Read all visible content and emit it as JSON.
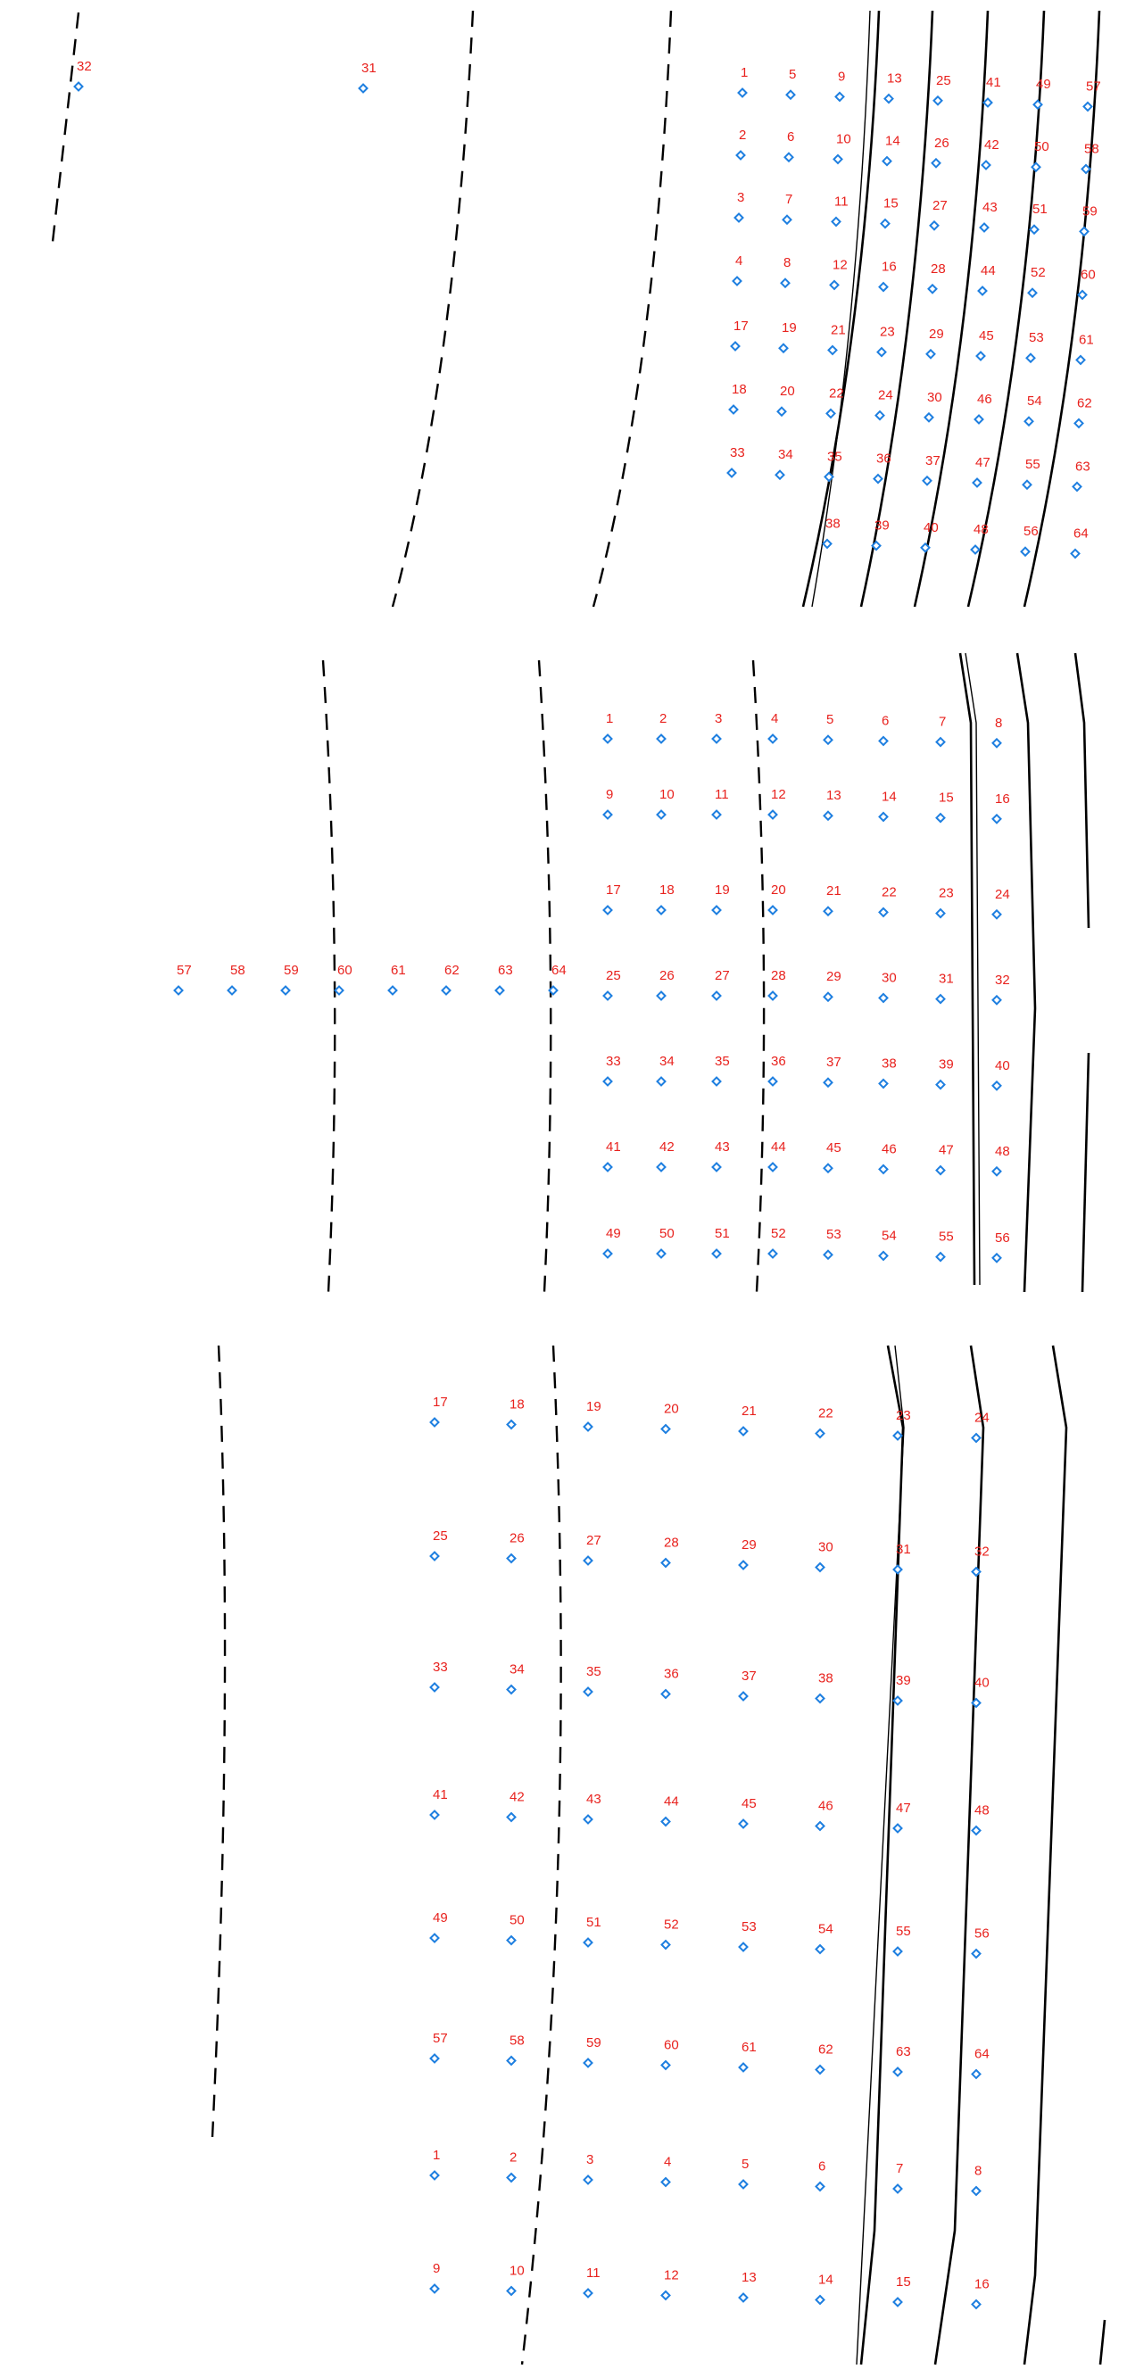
{
  "panels": [
    {
      "id": "panel-top",
      "points": [
        {
          "label": "32"
        },
        {
          "label": "31"
        },
        {
          "label": "1"
        },
        {
          "label": "5"
        },
        {
          "label": "9"
        },
        {
          "label": "13"
        },
        {
          "label": "25"
        },
        {
          "label": "41"
        },
        {
          "label": "49"
        },
        {
          "label": "57"
        },
        {
          "label": "2"
        },
        {
          "label": "6"
        },
        {
          "label": "10"
        },
        {
          "label": "14"
        },
        {
          "label": "26"
        },
        {
          "label": "42"
        },
        {
          "label": "50"
        },
        {
          "label": "58"
        },
        {
          "label": "3"
        },
        {
          "label": "7"
        },
        {
          "label": "11"
        },
        {
          "label": "15"
        },
        {
          "label": "27"
        },
        {
          "label": "43"
        },
        {
          "label": "51"
        },
        {
          "label": "59"
        },
        {
          "label": "4"
        },
        {
          "label": "8"
        },
        {
          "label": "12"
        },
        {
          "label": "16"
        },
        {
          "label": "28"
        },
        {
          "label": "44"
        },
        {
          "label": "52"
        },
        {
          "label": "60"
        },
        {
          "label": "17"
        },
        {
          "label": "19"
        },
        {
          "label": "21"
        },
        {
          "label": "23"
        },
        {
          "label": "29"
        },
        {
          "label": "45"
        },
        {
          "label": "53"
        },
        {
          "label": "61"
        },
        {
          "label": "18"
        },
        {
          "label": "20"
        },
        {
          "label": "22"
        },
        {
          "label": "24"
        },
        {
          "label": "30"
        },
        {
          "label": "46"
        },
        {
          "label": "54"
        },
        {
          "label": "62"
        },
        {
          "label": "33"
        },
        {
          "label": "34"
        },
        {
          "label": "35"
        },
        {
          "label": "36"
        },
        {
          "label": "37"
        },
        {
          "label": "47"
        },
        {
          "label": "55"
        },
        {
          "label": "63"
        },
        {
          "label": "38"
        },
        {
          "label": "39"
        },
        {
          "label": "40"
        },
        {
          "label": "48"
        },
        {
          "label": "56"
        },
        {
          "label": "64"
        }
      ]
    },
    {
      "id": "panel-middle",
      "points": [
        {
          "label": "1"
        },
        {
          "label": "2"
        },
        {
          "label": "3"
        },
        {
          "label": "4"
        },
        {
          "label": "5"
        },
        {
          "label": "6"
        },
        {
          "label": "7"
        },
        {
          "label": "8"
        },
        {
          "label": "9"
        },
        {
          "label": "10"
        },
        {
          "label": "11"
        },
        {
          "label": "12"
        },
        {
          "label": "13"
        },
        {
          "label": "14"
        },
        {
          "label": "15"
        },
        {
          "label": "16"
        },
        {
          "label": "17"
        },
        {
          "label": "18"
        },
        {
          "label": "19"
        },
        {
          "label": "20"
        },
        {
          "label": "21"
        },
        {
          "label": "22"
        },
        {
          "label": "23"
        },
        {
          "label": "24"
        },
        {
          "label": "57"
        },
        {
          "label": "58"
        },
        {
          "label": "59"
        },
        {
          "label": "60"
        },
        {
          "label": "61"
        },
        {
          "label": "62"
        },
        {
          "label": "63"
        },
        {
          "label": "64"
        },
        {
          "label": "25"
        },
        {
          "label": "26"
        },
        {
          "label": "27"
        },
        {
          "label": "28"
        },
        {
          "label": "29"
        },
        {
          "label": "30"
        },
        {
          "label": "31"
        },
        {
          "label": "32"
        },
        {
          "label": "33"
        },
        {
          "label": "34"
        },
        {
          "label": "35"
        },
        {
          "label": "36"
        },
        {
          "label": "37"
        },
        {
          "label": "38"
        },
        {
          "label": "39"
        },
        {
          "label": "40"
        },
        {
          "label": "41"
        },
        {
          "label": "42"
        },
        {
          "label": "43"
        },
        {
          "label": "44"
        },
        {
          "label": "45"
        },
        {
          "label": "46"
        },
        {
          "label": "47"
        },
        {
          "label": "48"
        },
        {
          "label": "49"
        },
        {
          "label": "50"
        },
        {
          "label": "51"
        },
        {
          "label": "52"
        },
        {
          "label": "53"
        },
        {
          "label": "54"
        },
        {
          "label": "55"
        },
        {
          "label": "56"
        }
      ]
    },
    {
      "id": "panel-bottom",
      "points": [
        {
          "label": "17"
        },
        {
          "label": "18"
        },
        {
          "label": "19"
        },
        {
          "label": "20"
        },
        {
          "label": "21"
        },
        {
          "label": "22"
        },
        {
          "label": "23"
        },
        {
          "label": "24"
        },
        {
          "label": "25"
        },
        {
          "label": "26"
        },
        {
          "label": "27"
        },
        {
          "label": "28"
        },
        {
          "label": "29"
        },
        {
          "label": "30"
        },
        {
          "label": "31"
        },
        {
          "label": "32"
        },
        {
          "label": "33"
        },
        {
          "label": "34"
        },
        {
          "label": "35"
        },
        {
          "label": "36"
        },
        {
          "label": "37"
        },
        {
          "label": "38"
        },
        {
          "label": "39"
        },
        {
          "label": "40"
        },
        {
          "label": "41"
        },
        {
          "label": "42"
        },
        {
          "label": "43"
        },
        {
          "label": "44"
        },
        {
          "label": "45"
        },
        {
          "label": "46"
        },
        {
          "label": "47"
        },
        {
          "label": "48"
        },
        {
          "label": "49"
        },
        {
          "label": "50"
        },
        {
          "label": "51"
        },
        {
          "label": "52"
        },
        {
          "label": "53"
        },
        {
          "label": "54"
        },
        {
          "label": "55"
        },
        {
          "label": "56"
        },
        {
          "label": "57"
        },
        {
          "label": "58"
        },
        {
          "label": "59"
        },
        {
          "label": "60"
        },
        {
          "label": "61"
        },
        {
          "label": "62"
        },
        {
          "label": "63"
        },
        {
          "label": "64"
        },
        {
          "label": "1"
        },
        {
          "label": "2"
        },
        {
          "label": "3"
        },
        {
          "label": "4"
        },
        {
          "label": "5"
        },
        {
          "label": "6"
        },
        {
          "label": "7"
        },
        {
          "label": "8"
        },
        {
          "label": "9"
        },
        {
          "label": "10"
        },
        {
          "label": "11"
        },
        {
          "label": "12"
        },
        {
          "label": "13"
        },
        {
          "label": "14"
        },
        {
          "label": "15"
        },
        {
          "label": "16"
        }
      ]
    }
  ],
  "colors": {
    "label": "#e8221e",
    "marker": "#1e7fe0",
    "line": "#000000",
    "background": "#ffffff"
  }
}
